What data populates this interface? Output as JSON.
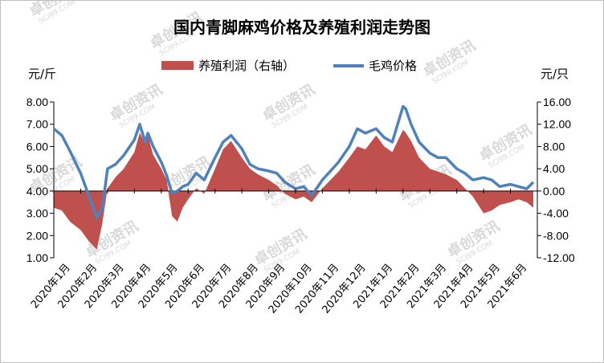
{
  "chart_data": {
    "type": "area+line",
    "title": "国内青脚麻鸡价格及养殖利润走势图",
    "left_unit": "元/斤",
    "right_unit": "元/只",
    "left_axis": {
      "min": 1.0,
      "max": 8.0,
      "step": 1.0,
      "ticks": [
        "1.00",
        "2.00",
        "3.00",
        "4.00",
        "5.00",
        "6.00",
        "7.00",
        "8.00"
      ]
    },
    "right_axis": {
      "min": -12.0,
      "max": 16.0,
      "step": 4.0,
      "ticks": [
        "-12.00",
        "-8.00",
        "-4.00",
        "0.00",
        "4.00",
        "8.00",
        "12.00",
        "16.00"
      ]
    },
    "categories": [
      "2020年1月",
      "2020年2月",
      "2020年3月",
      "2020年4月",
      "2020年5月",
      "2020年6月",
      "2020年7月",
      "2020年8月",
      "2020年9月",
      "2020年10月",
      "2020年11月",
      "2020年12月",
      "2021年1月",
      "2021年2月",
      "2021年3月",
      "2021年4月",
      "2021年5月",
      "2021年6月"
    ],
    "legend": {
      "position": "top",
      "entries": [
        "养殖利润（右轴）",
        "毛鸡价格"
      ]
    },
    "series": [
      {
        "name": "养殖利润（右轴）",
        "axis": "right",
        "kind": "area",
        "color": "#c0504d",
        "x": [
          0,
          0.3,
          0.6,
          1.0,
          1.3,
          1.6,
          1.8,
          2.0,
          2.3,
          2.6,
          3.0,
          3.2,
          3.4,
          3.5,
          3.7,
          4.0,
          4.2,
          4.4,
          4.6,
          4.8,
          5.0,
          5.3,
          5.6,
          6.0,
          6.3,
          6.6,
          7.0,
          7.3,
          7.6,
          8.0,
          8.3,
          8.6,
          9.0,
          9.3,
          9.6,
          10.0,
          10.3,
          10.6,
          11.0,
          11.3,
          11.6,
          12.0,
          12.3,
          12.6,
          13.0,
          13.1,
          13.3,
          13.6,
          14.0,
          14.3,
          14.6,
          15.0,
          15.3,
          15.6,
          16.0,
          16.3,
          16.6,
          17.0,
          17.3,
          17.6,
          17.85
        ],
        "values": [
          -3.0,
          -3.5,
          -5.5,
          -7.0,
          -9.0,
          -10.5,
          -6.0,
          0.5,
          2.5,
          4.0,
          7.0,
          10.5,
          8.5,
          10.0,
          6.5,
          4.0,
          2.0,
          -4.5,
          -5.5,
          -3.0,
          -1.5,
          0.5,
          -0.5,
          4.0,
          7.5,
          9.0,
          6.0,
          4.0,
          3.0,
          2.0,
          1.0,
          -0.5,
          -1.5,
          -1.0,
          -2.0,
          0.5,
          2.0,
          3.5,
          6.0,
          8.0,
          7.5,
          10.0,
          8.0,
          7.0,
          11.0,
          10.5,
          9.0,
          6.0,
          4.0,
          3.5,
          3.0,
          2.0,
          0.5,
          -1.0,
          -4.0,
          -3.5,
          -2.5,
          -2.0,
          -1.5,
          -2.0,
          -3.0
        ]
      },
      {
        "name": "毛鸡价格",
        "axis": "left",
        "kind": "line",
        "color": "#4f81bd",
        "x": [
          0,
          0.3,
          0.6,
          1.0,
          1.3,
          1.6,
          1.8,
          2.0,
          2.3,
          2.6,
          3.0,
          3.2,
          3.4,
          3.5,
          3.7,
          4.0,
          4.2,
          4.4,
          4.6,
          4.8,
          5.0,
          5.3,
          5.6,
          6.0,
          6.3,
          6.6,
          7.0,
          7.3,
          7.6,
          8.0,
          8.3,
          8.6,
          9.0,
          9.3,
          9.6,
          10.0,
          10.3,
          10.6,
          11.0,
          11.3,
          11.6,
          12.0,
          12.3,
          12.6,
          13.0,
          13.1,
          13.3,
          13.6,
          14.0,
          14.3,
          14.6,
          15.0,
          15.3,
          15.6,
          16.0,
          16.3,
          16.6,
          17.0,
          17.3,
          17.6,
          17.85
        ],
        "values": [
          6.8,
          6.5,
          5.8,
          4.8,
          3.8,
          2.8,
          3.2,
          5.0,
          5.2,
          5.6,
          6.3,
          7.0,
          6.2,
          6.6,
          6.0,
          5.3,
          4.7,
          3.9,
          4.0,
          4.2,
          4.3,
          4.8,
          4.5,
          5.5,
          6.2,
          6.5,
          5.9,
          5.2,
          5.0,
          4.9,
          4.8,
          4.4,
          4.1,
          4.2,
          3.8,
          4.5,
          4.9,
          5.3,
          6.0,
          6.8,
          6.6,
          6.8,
          6.4,
          6.2,
          7.8,
          7.7,
          7.0,
          6.2,
          5.7,
          5.5,
          5.5,
          5.0,
          4.8,
          4.5,
          4.6,
          4.5,
          4.2,
          4.3,
          4.2,
          4.1,
          4.4
        ]
      }
    ],
    "grid": false
  },
  "watermark": {
    "brand": "卓创资讯",
    "domain": "SCI99.COM"
  }
}
